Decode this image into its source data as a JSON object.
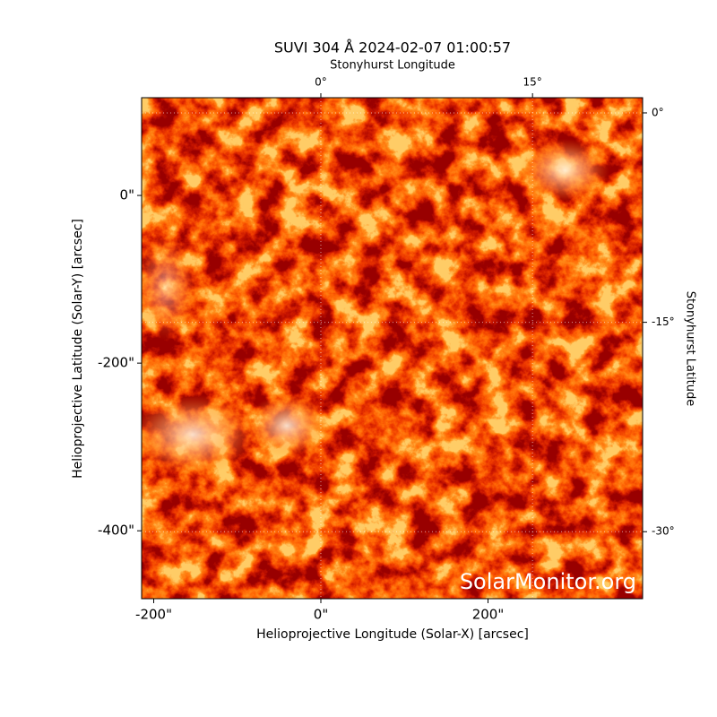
{
  "chart_data": {
    "type": "image",
    "title": "SUVI 304 Å 2024-02-07 01:00:57",
    "xlabel": "Helioprojective Longitude (Solar-X) [arcsec]",
    "ylabel": "Helioprojective Latitude (Solar-Y) [arcsec]",
    "x2label": "Stonyhurst Longitude",
    "y2label": "Stonyhurst Latitude",
    "xlim": [
      -214.5,
      385
    ],
    "ylim": [
      -481,
      116.6
    ],
    "xticks": [
      {
        "value": -200,
        "label": "-200\""
      },
      {
        "value": 0,
        "label": "0\""
      },
      {
        "value": 200,
        "label": "200\""
      }
    ],
    "yticks": [
      {
        "value": 0,
        "label": "0\""
      },
      {
        "value": -200,
        "label": "-200\""
      },
      {
        "value": -400,
        "label": "-400\""
      }
    ],
    "x2lim": [
      -12.7,
      22.8
    ],
    "x2ticks": [
      {
        "value": 0,
        "label": "0°"
      },
      {
        "value": 15,
        "label": "15°"
      }
    ],
    "y2lim": [
      -34.8,
      1.09
    ],
    "y2ticks": [
      {
        "value": 0,
        "label": "0°"
      },
      {
        "value": -15,
        "label": "-15°"
      },
      {
        "value": -30,
        "label": "-30°"
      }
    ],
    "grid": true,
    "watermark": "SolarMonitor.org"
  }
}
